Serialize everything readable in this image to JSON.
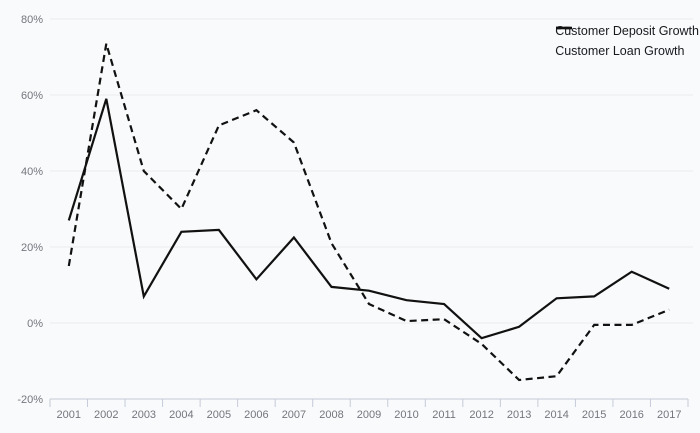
{
  "chart_data": {
    "type": "line",
    "title": "",
    "xlabel": "",
    "ylabel": "",
    "x": [
      "2001",
      "2002",
      "2003",
      "2004",
      "2005",
      "2006",
      "2007",
      "2008",
      "2009",
      "2010",
      "2011",
      "2012",
      "2013",
      "2014",
      "2015",
      "2016",
      "2017"
    ],
    "series": [
      {
        "name": "Customer Deposit Growth",
        "style": "solid",
        "color": "#111111",
        "values": [
          27,
          59,
          7,
          24,
          24.5,
          11.5,
          22.5,
          9.5,
          8.5,
          6,
          5,
          -4,
          -1,
          6.5,
          7,
          13.5,
          9
        ]
      },
      {
        "name": "Customer Loan Growth",
        "style": "dashed",
        "color": "#111111",
        "values": [
          15,
          73.5,
          40,
          30,
          52,
          56,
          47.5,
          21,
          5,
          0.5,
          1,
          -5.5,
          -15,
          -14,
          -0.5,
          -0.5,
          3.5
        ]
      }
    ],
    "ylim": [
      -20,
      80
    ],
    "yticks": [
      {
        "value": 80,
        "label": "80%"
      },
      {
        "value": 60,
        "label": "60%"
      },
      {
        "value": 40,
        "label": "40%"
      },
      {
        "value": 20,
        "label": "20%"
      },
      {
        "value": 0,
        "label": "0%"
      },
      {
        "value": -20,
        "label": "-20%"
      }
    ],
    "legend_position": "top-right",
    "grid": true,
    "colors": {
      "background": "#f9fafb",
      "gridline": "#ececee",
      "axis_line": "#c6cbda",
      "tick_mark": "#c6cbda",
      "tick_label": "#74767e",
      "legend_text": "#17191e"
    }
  }
}
